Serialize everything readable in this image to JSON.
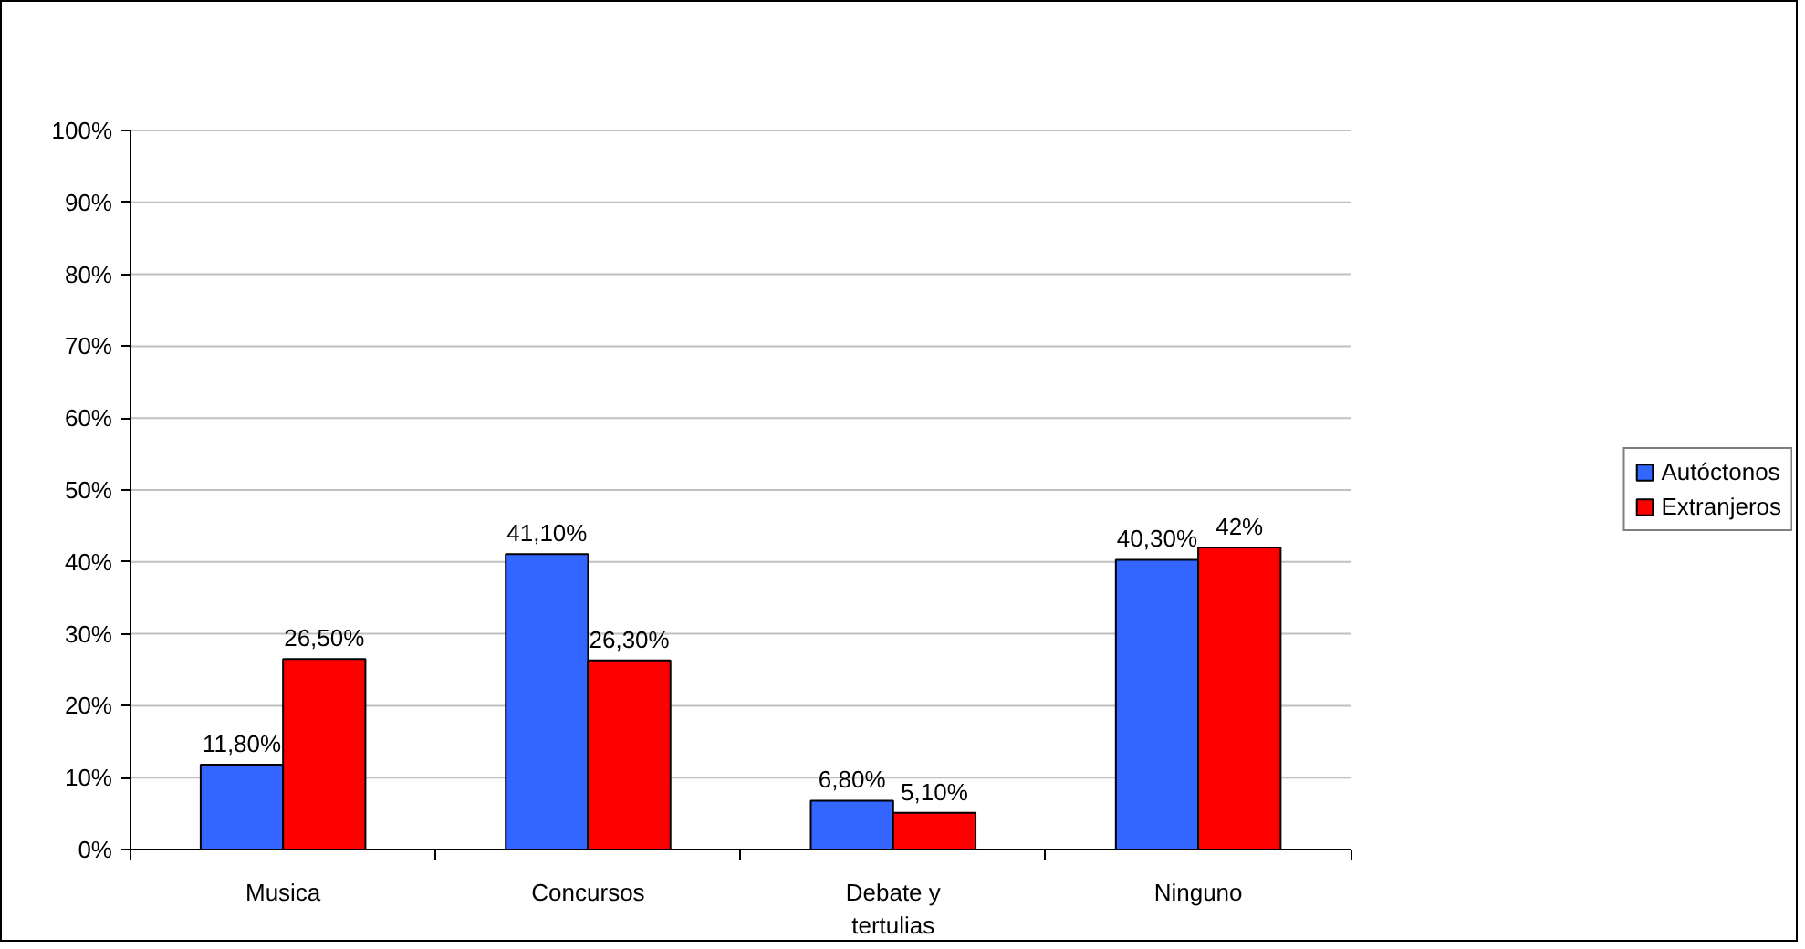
{
  "chart_data": {
    "type": "bar",
    "categories": [
      "Musica",
      "Concursos",
      "Debate y tertulias",
      "Ninguno"
    ],
    "series": [
      {
        "name": "Autóctonos",
        "color": "#3366ff",
        "values": [
          11.8,
          41.1,
          6.8,
          40.3
        ],
        "value_labels": [
          "11,80%",
          "41,10%",
          "6,80%",
          "40,30%"
        ]
      },
      {
        "name": "Extranjeros",
        "color": "#ff0000",
        "values": [
          26.5,
          26.3,
          5.1,
          42
        ],
        "value_labels": [
          "26,50%",
          "26,30%",
          "5,10%",
          "42%"
        ]
      }
    ],
    "ylim": [
      0,
      100
    ],
    "yticks": [
      {
        "value": 0,
        "label": "0%"
      },
      {
        "value": 10,
        "label": "10%"
      },
      {
        "value": 20,
        "label": "20%"
      },
      {
        "value": 30,
        "label": "30%"
      },
      {
        "value": 40,
        "label": "40%"
      },
      {
        "value": 50,
        "label": "50%"
      },
      {
        "value": 60,
        "label": "60%"
      },
      {
        "value": 70,
        "label": "70%"
      },
      {
        "value": 80,
        "label": "80%"
      },
      {
        "value": 90,
        "label": "90%"
      },
      {
        "value": 100,
        "label": "100%"
      }
    ],
    "grid": "y",
    "legend": "right"
  }
}
